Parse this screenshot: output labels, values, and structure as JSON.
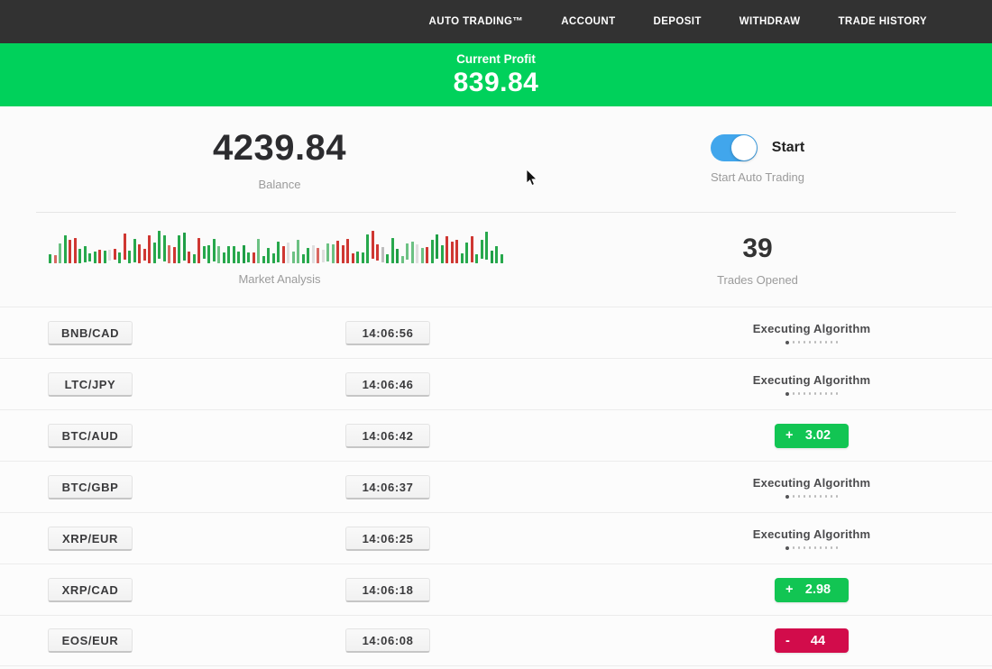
{
  "nav": {
    "items": [
      {
        "label": "AUTO TRADING™"
      },
      {
        "label": "ACCOUNT"
      },
      {
        "label": "DEPOSIT"
      },
      {
        "label": "WITHDRAW"
      },
      {
        "label": "TRADE HISTORY"
      }
    ]
  },
  "profit_banner": {
    "label": "Current Profit",
    "value": "839.84",
    "bg_color": "#00d15b"
  },
  "account": {
    "balance": "4239.84",
    "balance_label": "Balance",
    "toggle_label": "Start",
    "toggle_sublabel": "Start Auto Trading",
    "toggle_on": true,
    "toggle_color": "#41a6ec"
  },
  "market": {
    "chart_label": "Market Analysis",
    "trades_opened": "39",
    "trades_opened_label": "Trades Opened",
    "bar_count": 92,
    "bar_palette": [
      "#27a84c",
      "#cf3732",
      "#6cc183",
      "#dedede",
      "#1f9e46",
      "#d96862",
      "#bdbdbd"
    ]
  },
  "status_colors": {
    "profit": "#12c553",
    "loss": "#d20c4b"
  },
  "executing_dots": 10,
  "trades": [
    {
      "pair": "BNB/CAD",
      "time": "14:06:56",
      "status": "executing",
      "status_label": "Executing Algorithm"
    },
    {
      "pair": "LTC/JPY",
      "time": "14:06:46",
      "status": "executing",
      "status_label": "Executing Algorithm"
    },
    {
      "pair": "BTC/AUD",
      "time": "14:06:42",
      "status": "profit",
      "sign": "+",
      "value": "3.02"
    },
    {
      "pair": "BTC/GBP",
      "time": "14:06:37",
      "status": "executing",
      "status_label": "Executing Algorithm"
    },
    {
      "pair": "XRP/EUR",
      "time": "14:06:25",
      "status": "executing",
      "status_label": "Executing Algorithm"
    },
    {
      "pair": "XRP/CAD",
      "time": "14:06:18",
      "status": "profit",
      "sign": "+",
      "value": "2.98"
    },
    {
      "pair": "EOS/EUR",
      "time": "14:06:08",
      "status": "loss",
      "sign": "-",
      "value": "44"
    }
  ],
  "icons": {
    "cursor": "arrow-pointer"
  }
}
